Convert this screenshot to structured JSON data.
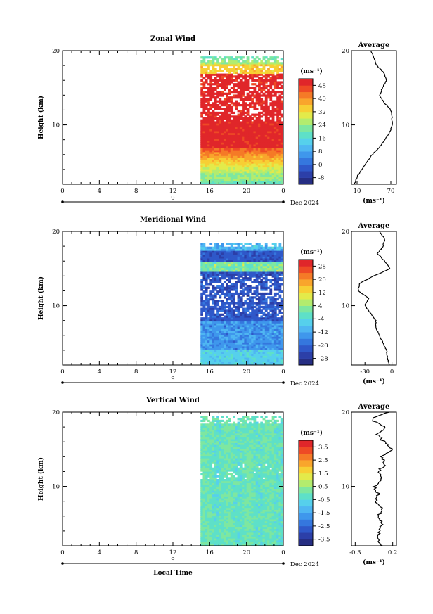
{
  "chart_data": [
    {
      "type": "heatmap",
      "title": "Zonal Wind",
      "ylabel": "Height (km)",
      "yticks": [
        "20",
        "10"
      ],
      "xticks": [
        "0",
        "4",
        "8",
        "12",
        "16",
        "20",
        "0"
      ],
      "date_label": "9",
      "date_suffix": "Dec 2024",
      "unit": "(ms⁻¹)",
      "colorbar_ticks": [
        "48",
        "40",
        "32",
        "24",
        "16",
        "8",
        "0",
        "-8"
      ],
      "colorbar_range": [
        -12,
        52
      ],
      "data_start_hour": 15,
      "profile": {
        "title": "Average",
        "yticks": [
          "20",
          "10"
        ],
        "xticks": [
          "10",
          "70"
        ],
        "xlabel": "(ms⁻¹)",
        "xlim": [
          0,
          80
        ],
        "heights": [
          2,
          3,
          4,
          5,
          6,
          7,
          8,
          9,
          10,
          11,
          12,
          13,
          14,
          15,
          16,
          17,
          18,
          19,
          20
        ],
        "values": [
          5,
          10,
          18,
          27,
          37,
          50,
          60,
          68,
          73,
          72,
          70,
          58,
          50,
          55,
          62,
          58,
          45,
          40,
          35
        ]
      }
    },
    {
      "type": "heatmap",
      "title": "Meridional Wind",
      "ylabel": "Height (km)",
      "yticks": [
        "20",
        "10"
      ],
      "xticks": [
        "0",
        "4",
        "8",
        "12",
        "16",
        "20",
        "0"
      ],
      "date_label": "9",
      "date_suffix": "Dec 2024",
      "unit": "(ms⁻¹)",
      "colorbar_ticks": [
        "28",
        "20",
        "12",
        "4",
        "-4",
        "-12",
        "-20",
        "-28"
      ],
      "colorbar_range": [
        -32,
        32
      ],
      "data_start_hour": 15,
      "profile": {
        "title": "Average",
        "yticks": [
          "20",
          "10"
        ],
        "xticks": [
          "-30",
          "0"
        ],
        "xlabel": "(ms⁻¹)",
        "xlim": [
          -45,
          5
        ],
        "heights": [
          2,
          3,
          4,
          5,
          6,
          7,
          8,
          9,
          10,
          11,
          12,
          13,
          14,
          15,
          16,
          17,
          18,
          19,
          20
        ],
        "values": [
          -3,
          -5,
          -6,
          -10,
          -14,
          -18,
          -18,
          -24,
          -30,
          -26,
          -38,
          -36,
          -20,
          -2,
          -8,
          -16,
          -10,
          -8,
          -14
        ]
      }
    },
    {
      "type": "heatmap",
      "title": "Vertical Wind",
      "ylabel": "Height (km)",
      "yticks": [
        "20",
        "10"
      ],
      "xticks": [
        "0",
        "4",
        "8",
        "12",
        "16",
        "20",
        "0"
      ],
      "date_label": "9",
      "date_suffix": "Dec 2024",
      "xlabel": "Local Time",
      "unit": "(ms⁻¹)",
      "colorbar_ticks": [
        "3.5",
        "2.5",
        "1.5",
        "0.5",
        "-0.5",
        "-1.5",
        "-2.5",
        "-3.5"
      ],
      "colorbar_range": [
        -4,
        4
      ],
      "data_start_hour": 15,
      "profile": {
        "title": "Average",
        "yticks": [
          "20",
          "10"
        ],
        "xticks": [
          "-0.3",
          "0.2"
        ],
        "xlabel": "(ms⁻¹)",
        "xlim": [
          -0.35,
          0.25
        ],
        "heights": [
          2,
          3,
          4,
          5,
          6,
          7,
          8,
          9,
          10,
          11,
          12,
          13,
          14,
          15,
          16,
          17,
          18,
          19,
          20
        ],
        "values": [
          0.05,
          0.0,
          0.03,
          0.06,
          0.02,
          0.05,
          -0.02,
          0.0,
          -0.05,
          0.06,
          0.0,
          0.1,
          0.05,
          0.2,
          0.08,
          0.0,
          0.1,
          -0.1,
          0.15
        ]
      }
    }
  ]
}
